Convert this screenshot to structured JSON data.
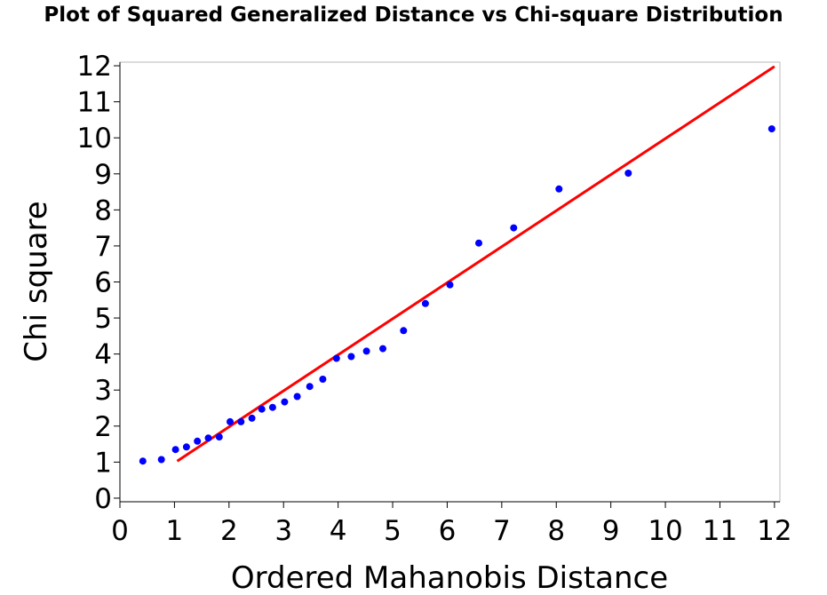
{
  "chart_data": {
    "type": "scatter",
    "title": "Plot of Squared Generalized Distance vs Chi-square Distribution",
    "xlabel": "Ordered Mahanobis Distance",
    "ylabel": "Chi square",
    "xlim": [
      0,
      12.1
    ],
    "ylim": [
      -0.1,
      12.1
    ],
    "x_ticks": [
      0,
      1,
      2,
      3,
      4,
      5,
      6,
      7,
      8,
      9,
      10,
      11,
      12
    ],
    "y_ticks": [
      0,
      1,
      2,
      3,
      4,
      5,
      6,
      7,
      8,
      9,
      10,
      11,
      12
    ],
    "grid": false,
    "legend": "none",
    "series": [
      {
        "type": "scatter",
        "color": "#0000ff",
        "x": [
          0.42,
          0.76,
          1.02,
          1.22,
          1.42,
          1.62,
          1.82,
          2.02,
          2.22,
          2.42,
          2.6,
          2.8,
          3.02,
          3.25,
          3.48,
          3.72,
          3.97,
          4.24,
          4.52,
          4.82,
          5.2,
          5.6,
          6.05,
          6.58,
          7.22,
          8.05,
          9.32,
          11.95
        ],
        "y": [
          1.03,
          1.07,
          1.35,
          1.42,
          1.58,
          1.67,
          1.7,
          2.12,
          2.12,
          2.22,
          2.47,
          2.52,
          2.67,
          2.82,
          3.1,
          3.3,
          3.88,
          3.93,
          4.08,
          4.15,
          4.65,
          5.4,
          5.92,
          7.08,
          7.5,
          8.58,
          9.02,
          10.25
        ]
      },
      {
        "type": "line",
        "color": "#ff0000",
        "x": [
          1.05,
          12.0
        ],
        "y": [
          1.03,
          11.98
        ]
      }
    ]
  }
}
